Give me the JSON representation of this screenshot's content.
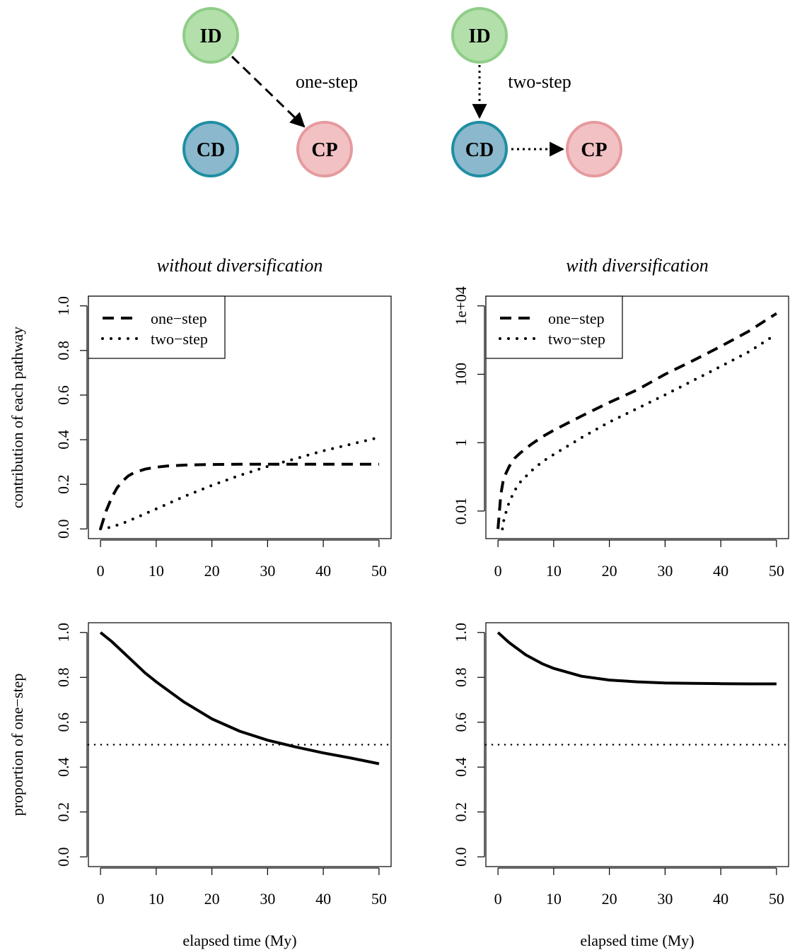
{
  "diagram": {
    "one_step": {
      "label": "one-step",
      "nodes": [
        {
          "id": "ID",
          "label": "ID",
          "fill": "#b3dfaa",
          "stroke": "#8fcd87"
        },
        {
          "id": "CD",
          "label": "CD",
          "fill": "#8bb8cc",
          "stroke": "#1f8ea3"
        },
        {
          "id": "CP",
          "label": "CP",
          "fill": "#f2c1c3",
          "stroke": "#e69a9e"
        }
      ],
      "edges": [
        {
          "from": "ID",
          "to": "CP",
          "style": "dashed"
        }
      ]
    },
    "two_step": {
      "label": "two-step",
      "nodes": [
        {
          "id": "ID",
          "label": "ID",
          "fill": "#b3dfaa",
          "stroke": "#8fcd87"
        },
        {
          "id": "CD",
          "label": "CD",
          "fill": "#8bb8cc",
          "stroke": "#1f8ea3"
        },
        {
          "id": "CP",
          "label": "CP",
          "fill": "#f2c1c3",
          "stroke": "#e69a9e"
        }
      ],
      "edges": [
        {
          "from": "ID",
          "to": "CD",
          "style": "dotted"
        },
        {
          "from": "CD",
          "to": "CP",
          "style": "dotted"
        }
      ]
    }
  },
  "chart_data": [
    {
      "id": "tl",
      "type": "line",
      "title": "without diversification",
      "xlabel": "",
      "ylabel": "contribution of each pathway",
      "xlim": [
        0,
        50
      ],
      "ylim": [
        0,
        1
      ],
      "yscale": "linear",
      "xticks": [
        0,
        10,
        20,
        30,
        40,
        50
      ],
      "yticks": [
        0,
        0.2,
        0.4,
        0.6,
        0.8,
        1
      ],
      "ytick_labels": [
        "0.0",
        "0.2",
        "0.4",
        "0.6",
        "0.8",
        "1.0"
      ],
      "legend": {
        "position": "top-left",
        "entries": [
          {
            "label": "one−step",
            "style": "dashed"
          },
          {
            "label": "two−step",
            "style": "dotted"
          }
        ]
      },
      "series": [
        {
          "name": "one−step",
          "style": "dashed",
          "x": [
            0,
            1,
            2,
            3,
            4,
            5,
            6,
            8,
            10,
            12,
            15,
            20,
            25,
            30,
            35,
            40,
            45,
            50
          ],
          "y": [
            0,
            0.08,
            0.14,
            0.185,
            0.215,
            0.238,
            0.252,
            0.268,
            0.277,
            0.282,
            0.286,
            0.289,
            0.29,
            0.29,
            0.29,
            0.29,
            0.29,
            0.29
          ]
        },
        {
          "name": "two−step",
          "style": "dotted",
          "x": [
            0,
            2,
            5,
            10,
            15,
            20,
            25,
            30,
            35,
            40,
            45,
            50
          ],
          "y": [
            0,
            0.008,
            0.035,
            0.09,
            0.145,
            0.195,
            0.24,
            0.28,
            0.315,
            0.35,
            0.38,
            0.41
          ]
        }
      ],
      "hlines": []
    },
    {
      "id": "tr",
      "type": "line",
      "title": "with diversification",
      "xlabel": "",
      "ylabel": "",
      "xlim": [
        0,
        50
      ],
      "ylim": [
        0.003,
        10000
      ],
      "yscale": "log",
      "xticks": [
        0,
        10,
        20,
        30,
        40,
        50
      ],
      "yticks": [
        0.01,
        1,
        100,
        10000
      ],
      "ytick_labels": [
        "0.01",
        "1",
        "100",
        "1e+04"
      ],
      "legend": {
        "position": "top-left",
        "entries": [
          {
            "label": "one−step",
            "style": "dashed"
          },
          {
            "label": "two−step",
            "style": "dotted"
          }
        ]
      },
      "series": [
        {
          "name": "one−step",
          "style": "dashed",
          "x": [
            0,
            0.5,
            1,
            2,
            3,
            4,
            6,
            8,
            10,
            15,
            20,
            25,
            30,
            35,
            40,
            45,
            50
          ],
          "y": [
            0.003,
            0.03,
            0.09,
            0.2,
            0.35,
            0.5,
            0.9,
            1.5,
            2.3,
            6,
            15,
            35,
            100,
            250,
            650,
            1800,
            6000
          ]
        },
        {
          "name": "two−step",
          "style": "dotted",
          "x": [
            0.8,
            1,
            1.5,
            2,
            3,
            4,
            6,
            8,
            10,
            15,
            20,
            25,
            30,
            35,
            40,
            45,
            50
          ],
          "y": [
            0.003,
            0.005,
            0.01,
            0.018,
            0.04,
            0.07,
            0.15,
            0.28,
            0.45,
            1.4,
            4,
            10,
            25,
            65,
            170,
            450,
            1500
          ]
        }
      ],
      "hlines": []
    },
    {
      "id": "bl",
      "type": "line",
      "title": "",
      "xlabel": "elapsed time (My)",
      "ylabel": "proportion of one−step",
      "xlim": [
        0,
        50
      ],
      "ylim": [
        0,
        1
      ],
      "yscale": "linear",
      "xticks": [
        0,
        10,
        20,
        30,
        40,
        50
      ],
      "yticks": [
        0,
        0.2,
        0.4,
        0.6,
        0.8,
        1
      ],
      "ytick_labels": [
        "0.0",
        "0.2",
        "0.4",
        "0.6",
        "0.8",
        "1.0"
      ],
      "legend": null,
      "series": [
        {
          "style": "solid",
          "x": [
            0,
            2,
            5,
            8,
            10,
            15,
            20,
            25,
            30,
            35,
            40,
            45,
            50
          ],
          "y": [
            1,
            0.96,
            0.89,
            0.82,
            0.78,
            0.69,
            0.615,
            0.56,
            0.52,
            0.49,
            0.463,
            0.44,
            0.415
          ]
        }
      ],
      "hlines": [
        {
          "y": 0.5,
          "style": "dotted"
        }
      ]
    },
    {
      "id": "br",
      "type": "line",
      "title": "",
      "xlabel": "elapsed time (My)",
      "ylabel": "",
      "xlim": [
        0,
        50
      ],
      "ylim": [
        0,
        1
      ],
      "yscale": "linear",
      "xticks": [
        0,
        10,
        20,
        30,
        40,
        50
      ],
      "yticks": [
        0,
        0.2,
        0.4,
        0.6,
        0.8,
        1
      ],
      "ytick_labels": [
        "0.0",
        "0.2",
        "0.4",
        "0.6",
        "0.8",
        "1.0"
      ],
      "legend": null,
      "series": [
        {
          "style": "solid",
          "x": [
            0,
            2,
            5,
            8,
            10,
            15,
            20,
            25,
            30,
            35,
            40,
            45,
            50
          ],
          "y": [
            1,
            0.955,
            0.9,
            0.86,
            0.84,
            0.805,
            0.788,
            0.78,
            0.775,
            0.773,
            0.772,
            0.771,
            0.771
          ]
        }
      ],
      "hlines": [
        {
          "y": 0.5,
          "style": "dotted"
        }
      ]
    }
  ]
}
